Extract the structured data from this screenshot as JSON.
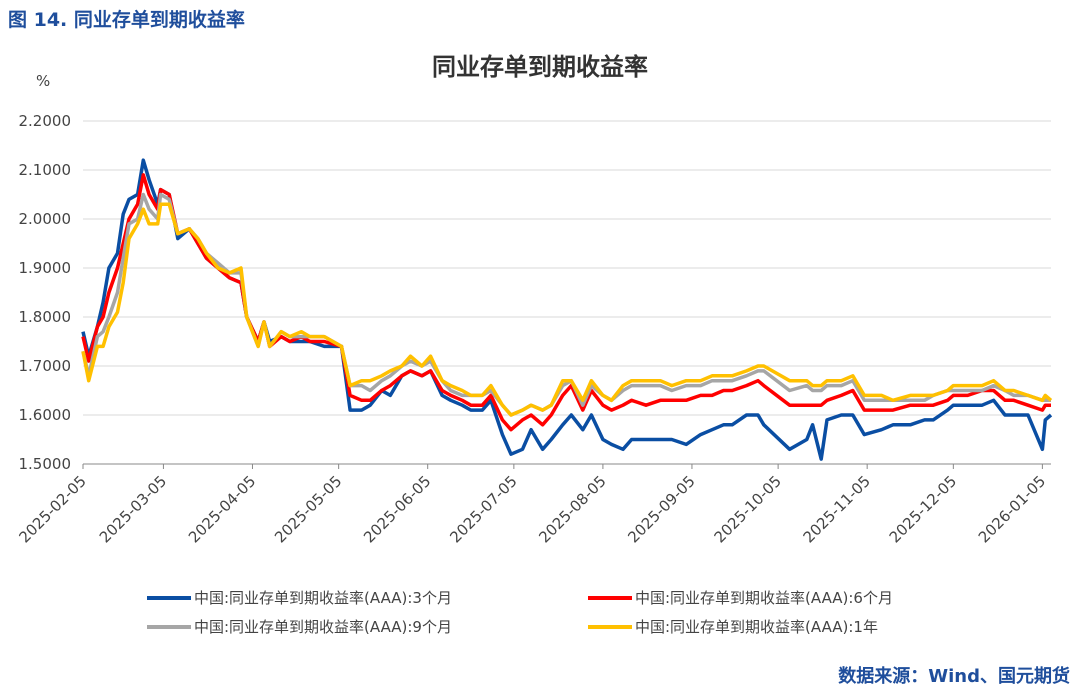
{
  "header": "图 14. 同业存单到期收益率",
  "source": "数据来源：Wind、国元期货",
  "chart_data": {
    "type": "line",
    "title": "同业存单到期收益率",
    "y_label": "%",
    "grid": true,
    "xlim": [
      "2025-02-05",
      "2026-01-08"
    ],
    "xticks": [
      "2025-02-05",
      "2025-03-05",
      "2025-04-05",
      "2025-05-05",
      "2025-06-05",
      "2025-07-05",
      "2025-08-05",
      "2025-09-05",
      "2025-10-05",
      "2025-11-05",
      "2025-12-05",
      "2026-01-05"
    ],
    "ylim": [
      1.5,
      2.2
    ],
    "yticks": [
      {
        "value": 1.5,
        "label": "1.5000"
      },
      {
        "value": 1.6,
        "label": "1.6000"
      },
      {
        "value": 1.7,
        "label": "1.7000"
      },
      {
        "value": 1.8,
        "label": "1.8000"
      },
      {
        "value": 1.9,
        "label": "1.9000"
      },
      {
        "value": 2.0,
        "label": "2.0000"
      },
      {
        "value": 2.1,
        "label": "2.1000"
      },
      {
        "value": 2.2,
        "label": "2.2000"
      }
    ],
    "x": [
      "2025-02-05",
      "2025-02-07",
      "2025-02-10",
      "2025-02-12",
      "2025-02-14",
      "2025-02-17",
      "2025-02-19",
      "2025-02-21",
      "2025-02-24",
      "2025-02-26",
      "2025-02-28",
      "2025-03-03",
      "2025-03-04",
      "2025-03-07",
      "2025-03-10",
      "2025-03-14",
      "2025-03-17",
      "2025-03-20",
      "2025-03-24",
      "2025-03-28",
      "2025-04-01",
      "2025-04-03",
      "2025-04-07",
      "2025-04-09",
      "2025-04-11",
      "2025-04-15",
      "2025-04-18",
      "2025-04-22",
      "2025-04-25",
      "2025-04-30",
      "2025-05-06",
      "2025-05-09",
      "2025-05-13",
      "2025-05-16",
      "2025-05-20",
      "2025-05-23",
      "2025-05-27",
      "2025-05-30",
      "2025-06-03",
      "2025-06-06",
      "2025-06-10",
      "2025-06-13",
      "2025-06-17",
      "2025-06-20",
      "2025-06-24",
      "2025-06-27",
      "2025-07-01",
      "2025-07-04",
      "2025-07-08",
      "2025-07-11",
      "2025-07-15",
      "2025-07-18",
      "2025-07-22",
      "2025-07-25",
      "2025-07-29",
      "2025-08-01",
      "2025-08-05",
      "2025-08-08",
      "2025-08-12",
      "2025-08-15",
      "2025-08-20",
      "2025-08-25",
      "2025-08-29",
      "2025-09-03",
      "2025-09-08",
      "2025-09-12",
      "2025-09-16",
      "2025-09-19",
      "2025-09-24",
      "2025-09-28",
      "2025-09-30",
      "2025-10-09",
      "2025-10-15",
      "2025-10-17",
      "2025-10-20",
      "2025-10-22",
      "2025-10-27",
      "2025-10-31",
      "2025-11-04",
      "2025-11-10",
      "2025-11-14",
      "2025-11-20",
      "2025-11-25",
      "2025-11-28",
      "2025-12-03",
      "2025-12-05",
      "2025-12-10",
      "2025-12-15",
      "2025-12-19",
      "2025-12-23",
      "2025-12-26",
      "2025-12-31",
      "2026-01-05",
      "2026-01-06",
      "2026-01-08"
    ],
    "series": [
      {
        "name": "中国:同业存单到期收益率(AAA):3个月",
        "color": "#0a4ea3",
        "values": [
          1.77,
          1.72,
          1.78,
          1.83,
          1.9,
          1.93,
          2.01,
          2.04,
          2.05,
          2.12,
          2.08,
          2.03,
          2.06,
          2.05,
          1.96,
          1.98,
          1.95,
          1.92,
          1.9,
          1.88,
          1.87,
          1.8,
          1.75,
          1.79,
          1.75,
          1.76,
          1.75,
          1.75,
          1.75,
          1.74,
          1.74,
          1.61,
          1.61,
          1.62,
          1.65,
          1.64,
          1.68,
          1.69,
          1.68,
          1.69,
          1.64,
          1.63,
          1.62,
          1.61,
          1.61,
          1.63,
          1.56,
          1.52,
          1.53,
          1.57,
          1.53,
          1.55,
          1.58,
          1.6,
          1.57,
          1.6,
          1.55,
          1.54,
          1.53,
          1.55,
          1.55,
          1.55,
          1.55,
          1.54,
          1.56,
          1.57,
          1.58,
          1.58,
          1.6,
          1.6,
          1.58,
          1.53,
          1.55,
          1.58,
          1.51,
          1.59,
          1.6,
          1.6,
          1.56,
          1.57,
          1.58,
          1.58,
          1.59,
          1.59,
          1.61,
          1.62,
          1.62,
          1.62,
          1.63,
          1.6,
          1.6,
          1.6,
          1.53,
          1.59,
          1.6
        ]
      },
      {
        "name": "中国:同业存单到期收益率(AAA):6个月",
        "color": "#ff0000",
        "values": [
          1.76,
          1.71,
          1.78,
          1.8,
          1.85,
          1.9,
          1.95,
          2.0,
          2.03,
          2.09,
          2.05,
          2.02,
          2.06,
          2.05,
          1.97,
          1.98,
          1.95,
          1.92,
          1.9,
          1.88,
          1.87,
          1.8,
          1.75,
          1.79,
          1.74,
          1.76,
          1.75,
          1.76,
          1.75,
          1.75,
          1.74,
          1.64,
          1.63,
          1.63,
          1.65,
          1.66,
          1.68,
          1.69,
          1.68,
          1.69,
          1.65,
          1.64,
          1.63,
          1.62,
          1.62,
          1.64,
          1.59,
          1.57,
          1.59,
          1.6,
          1.58,
          1.6,
          1.64,
          1.66,
          1.61,
          1.65,
          1.62,
          1.61,
          1.62,
          1.63,
          1.62,
          1.63,
          1.63,
          1.63,
          1.64,
          1.64,
          1.65,
          1.65,
          1.66,
          1.67,
          1.66,
          1.62,
          1.62,
          1.62,
          1.62,
          1.63,
          1.64,
          1.65,
          1.61,
          1.61,
          1.61,
          1.62,
          1.62,
          1.62,
          1.63,
          1.64,
          1.64,
          1.65,
          1.65,
          1.63,
          1.63,
          1.62,
          1.61,
          1.62,
          1.62
        ]
      },
      {
        "name": "中国:同业存单到期收益率(AAA):9个月",
        "color": "#a6a6a6",
        "values": [
          1.73,
          1.68,
          1.76,
          1.77,
          1.8,
          1.85,
          1.92,
          1.99,
          2.0,
          2.05,
          2.02,
          2.0,
          2.05,
          2.04,
          1.97,
          1.98,
          1.96,
          1.93,
          1.91,
          1.89,
          1.89,
          1.8,
          1.74,
          1.79,
          1.74,
          1.77,
          1.76,
          1.76,
          1.76,
          1.76,
          1.74,
          1.66,
          1.66,
          1.65,
          1.67,
          1.68,
          1.7,
          1.71,
          1.7,
          1.71,
          1.67,
          1.65,
          1.64,
          1.64,
          1.64,
          1.65,
          1.62,
          1.6,
          1.61,
          1.62,
          1.61,
          1.62,
          1.66,
          1.67,
          1.62,
          1.66,
          1.64,
          1.63,
          1.65,
          1.66,
          1.66,
          1.66,
          1.65,
          1.66,
          1.66,
          1.67,
          1.67,
          1.67,
          1.68,
          1.69,
          1.69,
          1.65,
          1.66,
          1.65,
          1.65,
          1.66,
          1.66,
          1.67,
          1.63,
          1.63,
          1.63,
          1.63,
          1.63,
          1.64,
          1.65,
          1.65,
          1.65,
          1.65,
          1.66,
          1.65,
          1.64,
          1.64,
          1.63,
          1.63,
          1.63
        ]
      },
      {
        "name": "中国:同业存单到期收益率(AAA):1年",
        "color": "#ffc000",
        "values": [
          1.73,
          1.67,
          1.74,
          1.74,
          1.78,
          1.81,
          1.87,
          1.96,
          1.99,
          2.02,
          1.99,
          1.99,
          2.03,
          2.03,
          1.97,
          1.98,
          1.96,
          1.93,
          1.9,
          1.89,
          1.9,
          1.8,
          1.74,
          1.79,
          1.74,
          1.77,
          1.76,
          1.77,
          1.76,
          1.76,
          1.74,
          1.66,
          1.67,
          1.67,
          1.68,
          1.69,
          1.7,
          1.72,
          1.7,
          1.72,
          1.67,
          1.66,
          1.65,
          1.64,
          1.64,
          1.66,
          1.62,
          1.6,
          1.61,
          1.62,
          1.61,
          1.62,
          1.67,
          1.67,
          1.63,
          1.67,
          1.64,
          1.63,
          1.66,
          1.67,
          1.67,
          1.67,
          1.66,
          1.67,
          1.67,
          1.68,
          1.68,
          1.68,
          1.69,
          1.7,
          1.7,
          1.67,
          1.67,
          1.66,
          1.66,
          1.67,
          1.67,
          1.68,
          1.64,
          1.64,
          1.63,
          1.64,
          1.64,
          1.64,
          1.65,
          1.66,
          1.66,
          1.66,
          1.67,
          1.65,
          1.65,
          1.64,
          1.63,
          1.64,
          1.63
        ]
      }
    ]
  }
}
